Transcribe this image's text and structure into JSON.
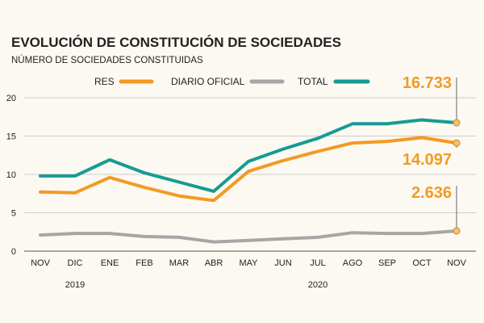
{
  "chart_data": {
    "type": "line",
    "title": "EVOLUCIÓN DE CONSTITUCIÓN DE SOCIEDADES",
    "subtitle": "NÚMERO DE SOCIEDADES CONSTITUIDAS",
    "categories": [
      "NOV",
      "DIC",
      "ENE",
      "FEB",
      "MAR",
      "ABR",
      "MAY",
      "JUN",
      "JUL",
      "AGO",
      "SEP",
      "OCT",
      "NOV"
    ],
    "years": [
      {
        "label": "2019",
        "under": "DIC"
      },
      {
        "label": "2020",
        "under": "JUL"
      }
    ],
    "ylim": [
      0,
      20
    ],
    "yticks": [
      0,
      5,
      10,
      15,
      20
    ],
    "grid": true,
    "legend_position": "top",
    "series": [
      {
        "name": "RES",
        "color": "#f39a24",
        "values": [
          7.7,
          7.6,
          9.6,
          8.3,
          7.2,
          6.6,
          10.4,
          11.8,
          13.0,
          14.1,
          14.3,
          14.8,
          14.097
        ]
      },
      {
        "name": "DIARIO OFICIAL",
        "color": "#a6a6a6",
        "values": [
          2.1,
          2.3,
          2.3,
          1.9,
          1.8,
          1.2,
          1.4,
          1.6,
          1.8,
          2.4,
          2.3,
          2.3,
          2.636
        ]
      },
      {
        "name": "TOTAL",
        "color": "#169b94",
        "values": [
          9.8,
          9.8,
          11.9,
          10.2,
          9.0,
          7.8,
          11.7,
          13.3,
          14.7,
          16.6,
          16.6,
          17.1,
          16.733
        ]
      }
    ],
    "callouts": [
      {
        "series": "TOTAL",
        "text": "16.733",
        "color": "#f39a24"
      },
      {
        "series": "RES",
        "text": "14.097",
        "color": "#f39a24"
      },
      {
        "series": "DIARIO OFICIAL",
        "text": "2.636",
        "color": "#f39a24"
      }
    ],
    "axis_color": "#555555",
    "grid_color": "#bdbdbd",
    "marker_color": "#f5c26b"
  }
}
